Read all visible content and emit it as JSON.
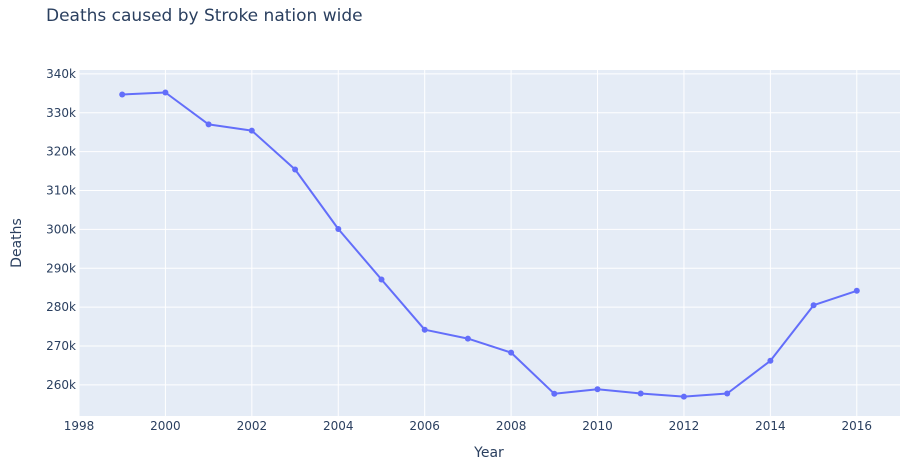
{
  "chart_data": {
    "type": "line",
    "title": "Deaths caused by Stroke nation wide",
    "xlabel": "Year",
    "ylabel": "Deaths",
    "xlim": [
      1998,
      2017
    ],
    "ylim": [
      252000,
      341000
    ],
    "grid": true,
    "x_ticks": [
      1998,
      2000,
      2002,
      2004,
      2006,
      2008,
      2010,
      2012,
      2014,
      2016
    ],
    "x_tick_labels": [
      "1998",
      "2000",
      "2002",
      "2004",
      "2006",
      "2008",
      "2010",
      "2012",
      "2014",
      "2016"
    ],
    "y_ticks": [
      260000,
      270000,
      280000,
      290000,
      300000,
      310000,
      320000,
      330000,
      340000
    ],
    "y_tick_labels": [
      "260k",
      "270k",
      "280k",
      "290k",
      "300k",
      "310k",
      "320k",
      "330k",
      "340k"
    ],
    "series": [
      {
        "color": "#636efa",
        "x": [
          1999,
          2000,
          2001,
          2002,
          2003,
          2004,
          2005,
          2006,
          2007,
          2008,
          2009,
          2010,
          2011,
          2012,
          2013,
          2014,
          2015,
          2016
        ],
        "y": [
          334700,
          335200,
          327000,
          325400,
          315400,
          300100,
          287100,
          274200,
          271900,
          268300,
          257700,
          258900,
          257800,
          257000,
          257800,
          266200,
          280500,
          284200
        ]
      }
    ]
  },
  "colors": {
    "plot_background": "#e5ecf6",
    "grid": "#ffffff",
    "text": "#2a3f5f",
    "line": "#636efa"
  }
}
